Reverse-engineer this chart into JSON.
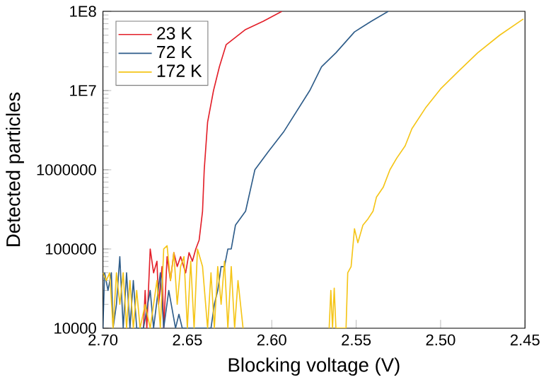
{
  "chart_data": {
    "type": "line",
    "xlabel": "Blocking voltage (V)",
    "ylabel": "Detected particles",
    "log": "y",
    "legend": "top left",
    "xlim": [
      2.7,
      2.45
    ],
    "ylim": [
      10000,
      100000000
    ],
    "xticks": [
      {
        "value": 2.7,
        "label": "2.70"
      },
      {
        "value": 2.65,
        "label": "2.65"
      },
      {
        "value": 2.6,
        "label": "2.60"
      },
      {
        "value": 2.55,
        "label": "2.55"
      },
      {
        "value": 2.5,
        "label": "2.50"
      },
      {
        "value": 2.45,
        "label": "2.45"
      }
    ],
    "yticks": [
      10000,
      100000,
      1000000,
      {
        "value": 10000000,
        "label": "1E7"
      },
      {
        "value": 100000000,
        "label": "1E8"
      }
    ],
    "series": [
      {
        "name": "23 K",
        "color": "#e3202a",
        "x": [
          2.676,
          2.675,
          2.674,
          2.672,
          2.67,
          2.668,
          2.667,
          2.665,
          2.664,
          2.662,
          2.66,
          2.658,
          2.656,
          2.654,
          2.651,
          2.649,
          2.647,
          2.645,
          2.643,
          2.641,
          2.64,
          2.638,
          2.6345,
          2.631,
          2.627,
          2.6155,
          2.605,
          2.594
        ],
        "values": [
          10000,
          30000,
          10000,
          100000,
          50000,
          70000,
          20000,
          60000,
          10000,
          80000,
          40000,
          90000,
          60000,
          80000,
          50000,
          90000,
          70000,
          100000,
          130000,
          300000,
          1000000,
          4000000,
          10000000,
          20000000,
          38000000,
          59000000,
          75000000,
          100000000
        ]
      },
      {
        "name": "72 K",
        "color": "#2f5d8a",
        "x": [
          2.7,
          2.699,
          2.697,
          2.695,
          2.694,
          2.692,
          2.69,
          2.688,
          2.686,
          2.684,
          2.682,
          2.68,
          2.676,
          2.672,
          2.67,
          2.666,
          2.664,
          2.661,
          2.657,
          2.655,
          2.653,
          2.636,
          2.634,
          2.632,
          2.63,
          2.628,
          2.626,
          2.624,
          2.6215,
          2.6155,
          2.61,
          2.602,
          2.593,
          2.5775,
          2.5705,
          2.562,
          2.551,
          2.541,
          2.531
        ],
        "values": [
          10000,
          50000,
          30000,
          50000,
          10000,
          20000,
          80000,
          10000,
          50000,
          10000,
          40000,
          10000,
          10000,
          30000,
          10000,
          50000,
          10000,
          30000,
          10000,
          15000,
          10000,
          10000,
          20000,
          30000,
          60000,
          60000,
          100000,
          100000,
          200000,
          300000,
          1000000,
          1700000,
          3000000,
          10000000,
          20000000,
          30000000,
          55000000,
          75000000,
          100000000
        ]
      },
      {
        "name": "172 K",
        "color": "#f5c518",
        "x": [
          2.7,
          2.698,
          2.696,
          2.694,
          2.692,
          2.69,
          2.688,
          2.686,
          2.684,
          2.682,
          2.68,
          2.678,
          2.675,
          2.672,
          2.668,
          2.666,
          2.664,
          2.662,
          2.66,
          2.658,
          2.656,
          2.654,
          2.652,
          2.65,
          2.648,
          2.646,
          2.644,
          2.641,
          2.638,
          2.636,
          2.634,
          2.632,
          2.63,
          2.628,
          2.626,
          2.624,
          2.622,
          2.62,
          2.617,
          2.59,
          2.566,
          2.565,
          2.564,
          2.563,
          2.562,
          2.556,
          2.555,
          2.553,
          2.551,
          2.549,
          2.546,
          2.543,
          2.54,
          2.538,
          2.534,
          2.53,
          2.526,
          2.521,
          2.517,
          2.509,
          2.5,
          2.49,
          2.478,
          2.465,
          2.451
        ],
        "values": [
          50000,
          40000,
          50000,
          10000,
          50000,
          20000,
          50000,
          10000,
          40000,
          10000,
          30000,
          10000,
          20000,
          10000,
          40000,
          10000,
          100000,
          110000,
          40000,
          90000,
          20000,
          60000,
          80000,
          10000,
          70000,
          10000,
          100000,
          60000,
          10000,
          50000,
          10000,
          60000,
          20000,
          70000,
          10000,
          60000,
          10000,
          40000,
          10000,
          null,
          10000,
          30000,
          10000,
          32000,
          10000,
          10000,
          50000,
          60000,
          180000,
          120000,
          200000,
          240000,
          300000,
          450000,
          600000,
          1000000,
          1400000,
          2000000,
          3300000,
          6000000,
          10500000,
          17000000,
          30000000,
          50000000,
          80000000
        ]
      }
    ]
  }
}
